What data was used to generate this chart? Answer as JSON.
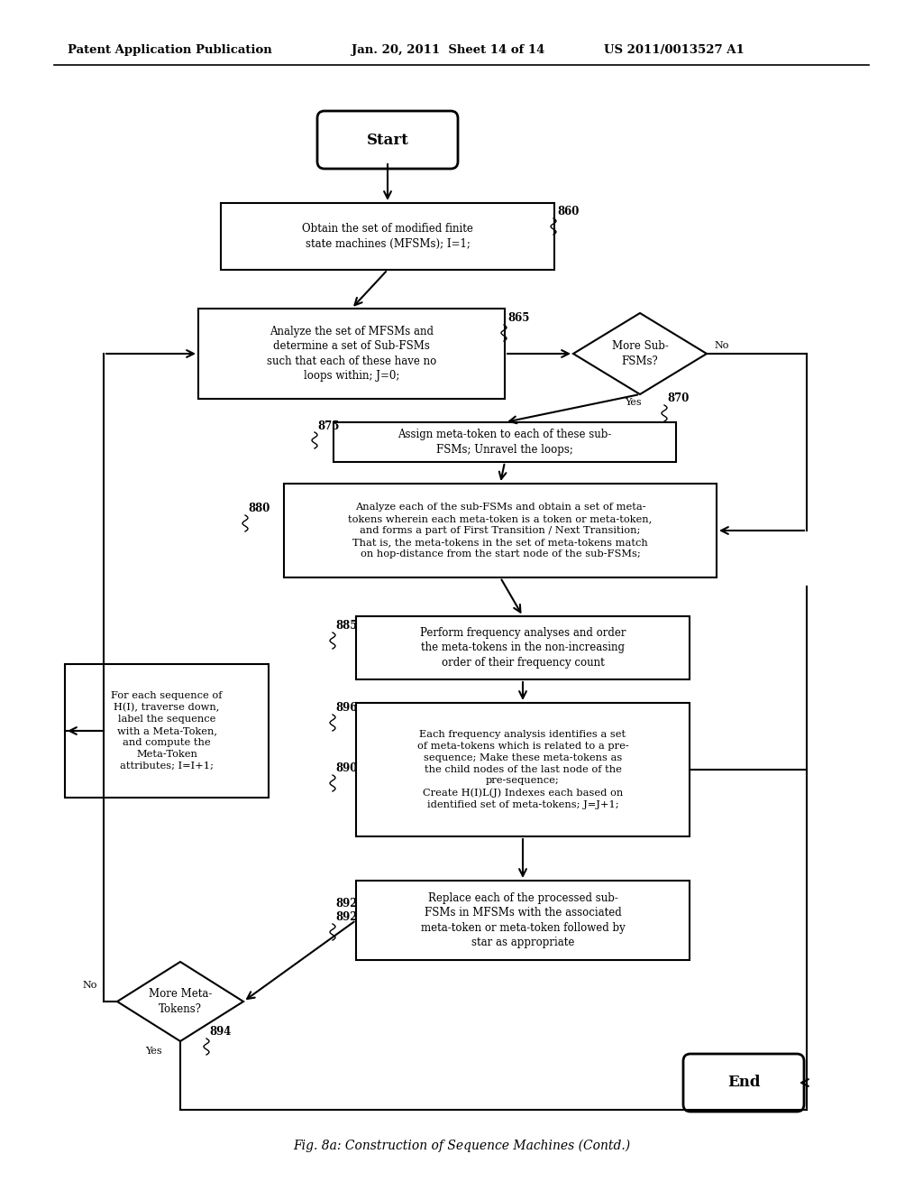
{
  "bg_color": "#ffffff",
  "text_color": "#000000",
  "line_color": "#000000",
  "header_left": "Patent Application Publication",
  "header_mid": "Jan. 20, 2011  Sheet 14 of 14",
  "header_right": "US 2011/0013527 A1",
  "caption": "Fig. 8a: Construction of Sequence Machines (Contd.)",
  "start_label": "Start",
  "end_label": "End",
  "box860": "Obtain the set of modified finite\nstate machines (MFSMs); I=1;",
  "box865": "Analyze the set of MFSMs and\ndetermine a set of Sub-FSMs\nsuch that each of these have no\nloops within; J=0;",
  "d870": "More Sub-\nFSMs?",
  "box875": "Assign meta-token to each of these sub-\nFSMs; Unravel the loops;",
  "box880": "Analyze each of the sub-FSMs and obtain a set of meta-\ntokens wherein each meta-token is a token or meta-token,\nand forms a part of First Transition / Next Transition;\nThat is, the meta-tokens in the set of meta-tokens match\non hop-distance from the start node of the sub-FSMs;",
  "box885": "Perform frequency analyses and order\nthe meta-tokens in the non-increasing\norder of their frequency count",
  "box896_890": "Each frequency analysis identifies a set\nof meta-tokens which is related to a pre-\nsequence; Make these meta-tokens as\nthe child nodes of the last node of the\npre-sequence;\nCreate H(I)L(J) Indexes each based on\nidentified set of meta-tokens; J=J+1;",
  "box892": "Replace each of the processed sub-\nFSMs in MFSMs with the associated\nmeta-token or meta-token followed by\nstar as appropriate",
  "box_left": "For each sequence of\nH(I), traverse down,\nlabel the sequence\nwith a Meta-Token,\nand compute the\nMeta-Token\nattributes; I=I+1;",
  "d894": "More Meta-\nTokens?"
}
